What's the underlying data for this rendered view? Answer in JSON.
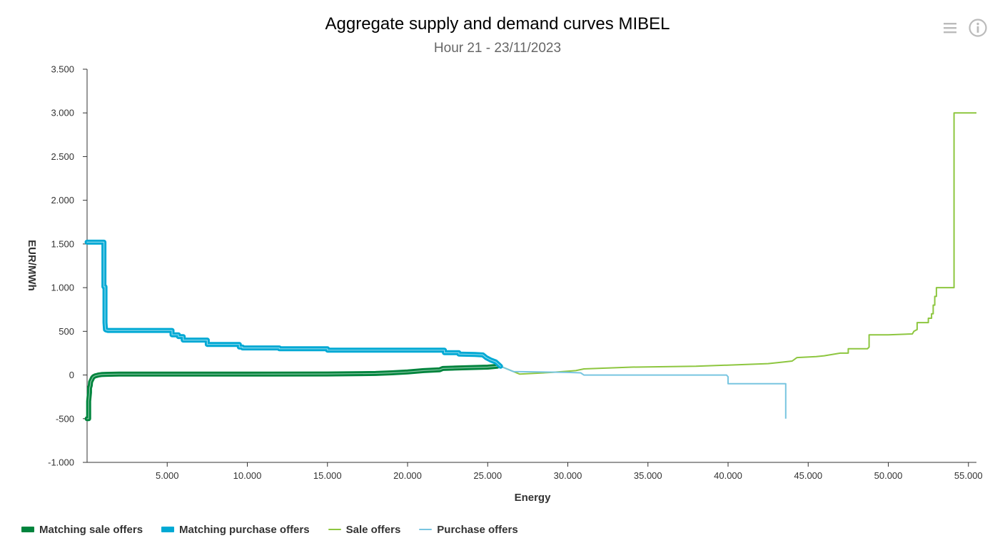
{
  "toolbar": {
    "menu_icon": "hamburger-menu-icon",
    "info_icon": "info-circle-icon"
  },
  "chart_data": {
    "type": "line",
    "title": "Aggregate supply and demand curves MIBEL",
    "subtitle": "Hour 21 - 23/11/2023",
    "xlabel": "Energy",
    "ylabel": "EUR/MWh",
    "xlim": [
      0,
      55500
    ],
    "ylim": [
      -1000,
      3500
    ],
    "xticks": [
      5000,
      10000,
      15000,
      20000,
      25000,
      30000,
      35000,
      40000,
      45000,
      50000,
      55000
    ],
    "xtick_labels": [
      "5.000",
      "10.000",
      "15.000",
      "20.000",
      "25.000",
      "30.000",
      "35.000",
      "40.000",
      "45.000",
      "50.000",
      "55.000"
    ],
    "yticks": [
      -1000,
      -500,
      0,
      500,
      1000,
      1500,
      2000,
      2500,
      3000,
      3500
    ],
    "ytick_labels": [
      "-1.000",
      "-500",
      "0",
      "500",
      "1.000",
      "1.500",
      "2.000",
      "2.500",
      "3.000",
      "3.500"
    ],
    "legend_position": "bottom-left",
    "grid": false,
    "series": [
      {
        "name": "Matching sale offers",
        "color": "#00843d",
        "style": "thick",
        "x": [
          0,
          100,
          100,
          150,
          150,
          200,
          220,
          300,
          350,
          400,
          500,
          600,
          700,
          900,
          1200,
          2000,
          5000,
          10000,
          15000,
          18000,
          19000,
          20000,
          21000,
          22000,
          22200,
          23000,
          24000,
          25000,
          25600
        ],
        "y": [
          -500,
          -500,
          -300,
          -200,
          -150,
          -120,
          -80,
          -50,
          -30,
          -20,
          -10,
          -5,
          0,
          5,
          8,
          10,
          10,
          10,
          12,
          18,
          25,
          35,
          50,
          60,
          75,
          80,
          85,
          90,
          100
        ]
      },
      {
        "name": "Matching purchase offers",
        "color": "#00a9d4",
        "style": "thick",
        "x": [
          0,
          1050,
          1050,
          1120,
          1120,
          1150,
          1200,
          1300,
          5300,
          5300,
          5700,
          5700,
          6000,
          6000,
          7500,
          7500,
          9500,
          9500,
          9700,
          9700,
          12000,
          12000,
          15000,
          15000,
          22300,
          22300,
          23200,
          23200,
          24200,
          24700,
          24900,
          25200,
          25500,
          25800
        ],
        "y": [
          1520,
          1520,
          1010,
          1010,
          600,
          520,
          515,
          510,
          510,
          460,
          460,
          440,
          440,
          400,
          400,
          350,
          350,
          320,
          320,
          310,
          310,
          300,
          300,
          285,
          285,
          255,
          255,
          240,
          235,
          230,
          200,
          170,
          150,
          100
        ]
      },
      {
        "name": "Sale offers",
        "color": "#8dc63f",
        "style": "thin",
        "x": [
          25800,
          27000,
          29000,
          30500,
          31000,
          34000,
          38000,
          41000,
          42500,
          43500,
          44000,
          44300,
          45500,
          46000,
          47000,
          47500,
          47500,
          48700,
          48800,
          48800,
          50000,
          51500,
          51600,
          51800,
          51800,
          52500,
          52500,
          52700,
          52700,
          52800,
          52800,
          52900,
          52900,
          53000,
          53000,
          54100,
          54100,
          55500
        ],
        "y": [
          100,
          10,
          30,
          50,
          70,
          90,
          100,
          120,
          130,
          150,
          160,
          200,
          210,
          220,
          250,
          250,
          300,
          300,
          320,
          460,
          460,
          470,
          500,
          520,
          600,
          600,
          650,
          650,
          700,
          700,
          800,
          800,
          900,
          900,
          1000,
          1000,
          3000,
          3000
        ]
      },
      {
        "name": "Purchase offers",
        "color": "#78c5e0",
        "style": "thin",
        "x": [
          25800,
          26200,
          26600,
          30000,
          30800,
          31000,
          35000,
          39900,
          40000,
          40000,
          43600,
          43600
        ],
        "y": [
          100,
          70,
          40,
          30,
          25,
          0,
          0,
          0,
          -20,
          -100,
          -100,
          -500
        ]
      }
    ]
  }
}
